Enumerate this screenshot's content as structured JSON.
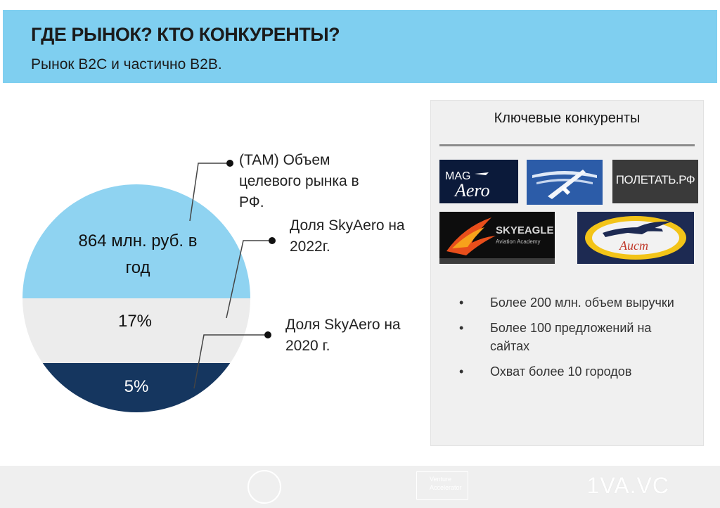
{
  "header": {
    "title": "ГДЕ РЫНОК? КТО КОНКУРЕНТЫ?",
    "subtitle": "Рынок B2C и частично B2B."
  },
  "market": {
    "tam_value": "864 млн. руб. в год",
    "share_2022_value": "17%",
    "share_2020_value": "5%",
    "callout_tam": "(TAM) Объем целевого рынка в РФ.",
    "callout_2022": "Доля SkyAero на 2022г.",
    "callout_2020": "Доля SkyAero на 2020 г.",
    "colors": {
      "tam": "#8fd3f1",
      "share_2022": "#ececec",
      "share_2020": "#15365f"
    }
  },
  "competitors": {
    "title": "Ключевые конкуренты",
    "logos": {
      "magaero": "MAG AERO",
      "poletat": "ПОЛЕТАТЬ.РФ",
      "skyeagle": "SKYEAGLE",
      "skyeagle_sub": "Aviation Academy",
      "aist": "Аист"
    },
    "bullets": [
      "Более 200 млн. объем выручки",
      "Более 100 предложений на сайтах",
      "Охват более 10 городов"
    ]
  },
  "footer": {
    "accelerator": "Venture Accelerator",
    "brand": "1VA.VC"
  }
}
